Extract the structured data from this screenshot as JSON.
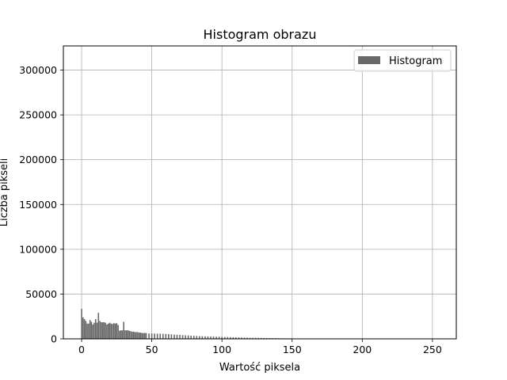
{
  "chart_data": {
    "type": "bar",
    "title": "Histogram obrazu",
    "xlabel": "Wartość piksela",
    "ylabel": "Liczba pikseli",
    "xlim": [
      -13,
      267
    ],
    "ylim": [
      0,
      327000
    ],
    "xticks": [
      0,
      50,
      100,
      150,
      200,
      250
    ],
    "yticks": [
      0,
      50000,
      100000,
      150000,
      200000,
      250000,
      300000
    ],
    "grid": true,
    "legend": {
      "placement": "top-right"
    },
    "series": [
      {
        "name": "Histogram",
        "color": "#696969",
        "x": [
          0,
          1,
          2,
          3,
          4,
          5,
          6,
          7,
          8,
          9,
          10,
          11,
          12,
          13,
          14,
          15,
          16,
          17,
          18,
          19,
          20,
          21,
          22,
          23,
          24,
          25,
          26,
          27,
          28,
          29,
          30,
          31,
          32,
          33,
          34,
          35,
          36,
          37,
          38,
          39,
          40,
          41,
          42,
          43,
          44,
          45,
          46,
          48,
          50,
          52,
          54,
          56,
          58,
          60,
          62,
          64,
          66,
          68,
          70,
          72,
          74,
          76,
          78,
          80,
          82,
          84,
          86,
          88,
          90,
          92,
          94,
          96,
          98,
          100,
          102,
          104,
          106,
          108,
          110,
          112,
          114,
          116,
          118,
          120,
          122,
          124,
          126,
          128,
          130,
          132,
          134,
          136,
          138,
          140,
          142,
          144,
          146,
          148,
          150,
          152,
          154,
          156,
          158,
          160,
          162,
          164,
          166,
          168,
          170
        ],
        "values": [
          33500,
          24000,
          22000,
          20000,
          17000,
          17000,
          21000,
          19000,
          16000,
          18000,
          22000,
          18000,
          29000,
          20000,
          18500,
          18500,
          18500,
          18000,
          16000,
          17000,
          18000,
          17000,
          16500,
          17500,
          17000,
          17500,
          15500,
          9000,
          9500,
          9500,
          19000,
          9500,
          9500,
          9500,
          9000,
          8500,
          8000,
          8000,
          7500,
          7500,
          7500,
          7000,
          7000,
          6500,
          6500,
          6500,
          6500,
          6000,
          6000,
          6000,
          5800,
          5800,
          5600,
          5500,
          5300,
          5000,
          4800,
          4600,
          4400,
          4200,
          4000,
          3800,
          3600,
          3400,
          3200,
          3000,
          2900,
          2800,
          2700,
          2600,
          2500,
          2400,
          2300,
          2200,
          2100,
          2000,
          1900,
          1800,
          1700,
          1600,
          1500,
          1400,
          1300,
          1200,
          1150,
          1100,
          1050,
          1000,
          950,
          900,
          850,
          800,
          750,
          700,
          650,
          600,
          550,
          500,
          450,
          400,
          350,
          300,
          300,
          300,
          300,
          300,
          300,
          300,
          200
        ]
      }
    ]
  }
}
